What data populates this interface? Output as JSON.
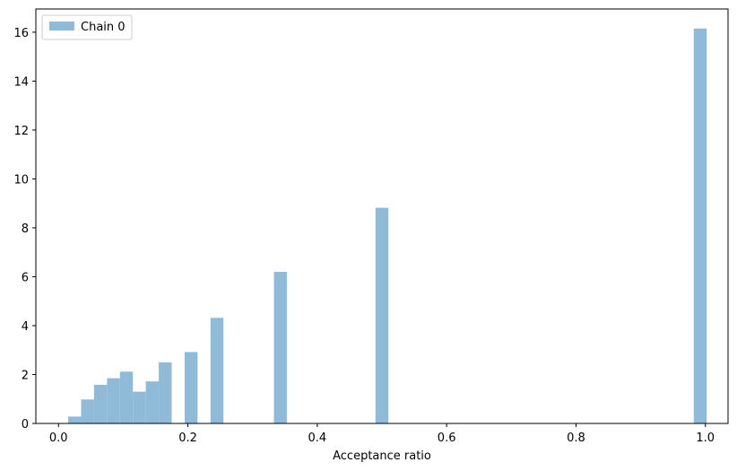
{
  "chart_data": {
    "type": "bar",
    "title": "",
    "xlabel": "Acceptance ratio",
    "ylabel": "",
    "xlim": [
      -0.035,
      1.035
    ],
    "ylim": [
      0,
      16.95
    ],
    "bin_width": 0.02,
    "xticks": [
      0.0,
      0.2,
      0.4,
      0.6,
      0.8,
      1.0
    ],
    "xtick_labels": [
      "0.0",
      "0.2",
      "0.4",
      "0.6",
      "0.8",
      "1.0"
    ],
    "yticks": [
      0,
      2,
      4,
      6,
      8,
      10,
      12,
      14,
      16
    ],
    "ytick_labels": [
      "0",
      "2",
      "4",
      "6",
      "8",
      "10",
      "12",
      "14",
      "16"
    ],
    "grid": false,
    "legend_position": "top-left",
    "bar_color": "#8fbbd9",
    "series": [
      {
        "name": "Chain 0",
        "bins": [
          {
            "x0": 0.015,
            "value": 0.28
          },
          {
            "x0": 0.035,
            "value": 0.98
          },
          {
            "x0": 0.055,
            "value": 1.58
          },
          {
            "x0": 0.075,
            "value": 1.85
          },
          {
            "x0": 0.095,
            "value": 2.12
          },
          {
            "x0": 0.115,
            "value": 1.3
          },
          {
            "x0": 0.135,
            "value": 1.72
          },
          {
            "x0": 0.155,
            "value": 2.5
          },
          {
            "x0": 0.195,
            "value": 2.92
          },
          {
            "x0": 0.235,
            "value": 4.32
          },
          {
            "x0": 0.333,
            "value": 6.2
          },
          {
            "x0": 0.49,
            "value": 8.82
          },
          {
            "x0": 0.982,
            "value": 16.15
          }
        ]
      }
    ]
  }
}
